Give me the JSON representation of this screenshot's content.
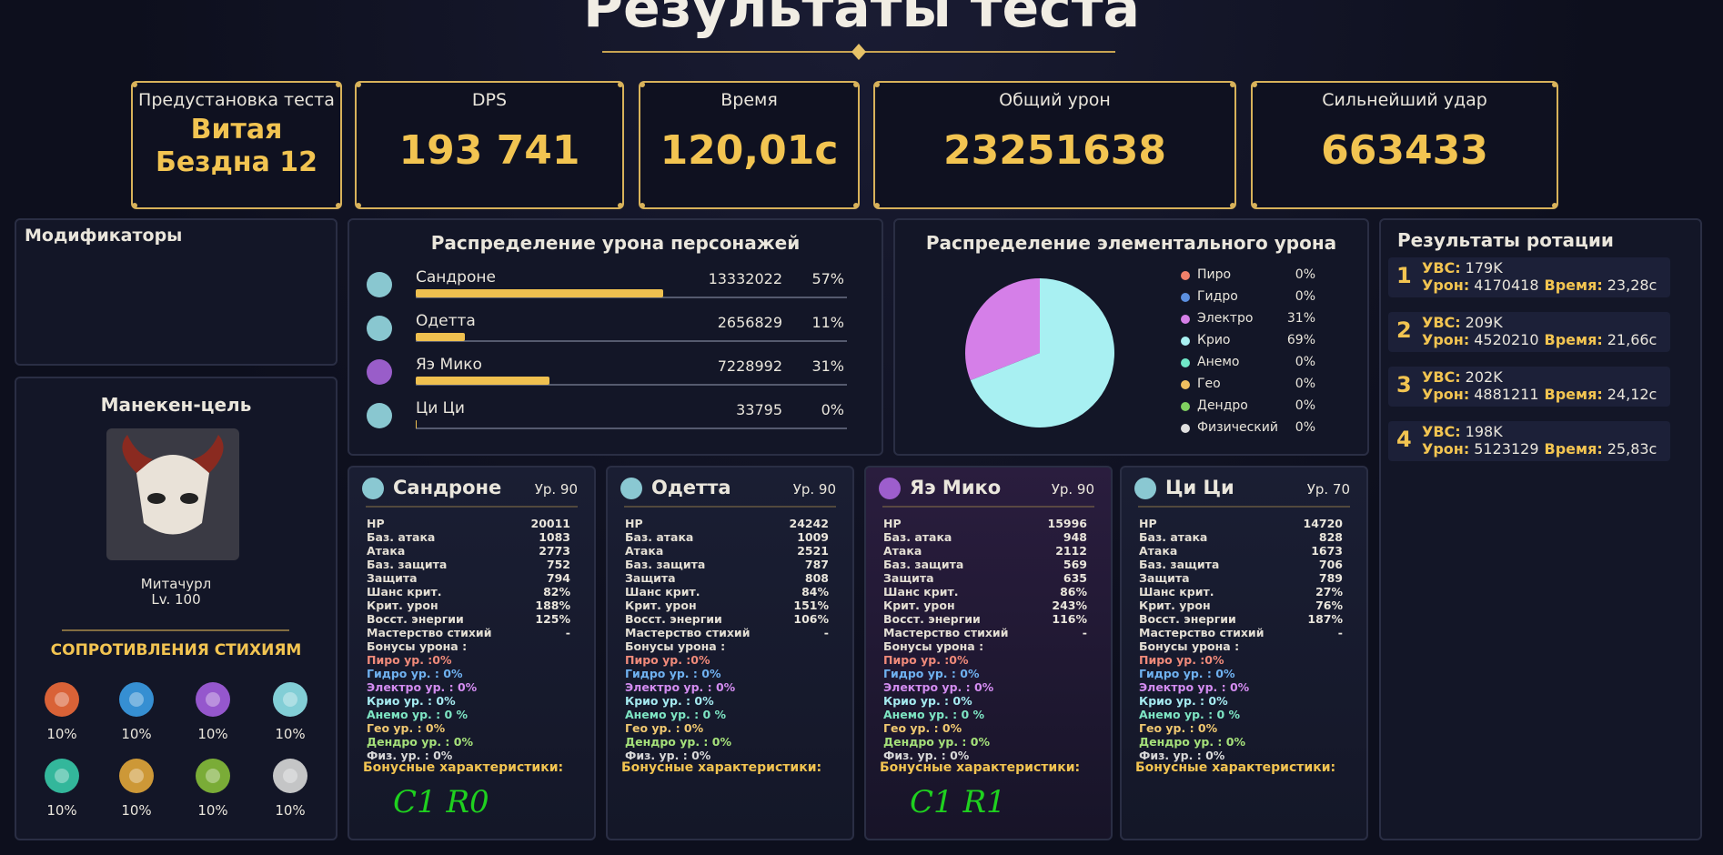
{
  "header": {
    "title": "Результаты теста"
  },
  "summary": [
    {
      "label": "Предустановка теста",
      "value": "Витая Бездна 12"
    },
    {
      "label": "DPS",
      "value": "193 741"
    },
    {
      "label": "Время",
      "value": "120,01с"
    },
    {
      "label": "Общий урон",
      "value": "23251638"
    },
    {
      "label": "Сильнейший удар",
      "value": "663433"
    }
  ],
  "modifiers": {
    "title": "Модификаторы"
  },
  "target": {
    "title": "Манекен-цель",
    "name": "Митачурл",
    "level": "Lv. 100",
    "resistance_title": "СОПРОТИВЛЕНИЯ СТИХИЯМ",
    "resistances": [
      "10%",
      "10%",
      "10%",
      "10%",
      "10%",
      "10%",
      "10%",
      "10%"
    ]
  },
  "damage_chart": {
    "type": "bar",
    "title": "Распределение урона персонажей",
    "categories": [
      "Сандроне",
      "Одетта",
      "Яэ Мико",
      "Ци Ци"
    ],
    "values": [
      13332022,
      2656829,
      7228992,
      33795
    ],
    "percent_labels": [
      "57%",
      "11%",
      "31%",
      "0%"
    ],
    "color": "#efc04f"
  },
  "element_chart": {
    "type": "pie",
    "title": "Распределение элементального урона",
    "categories": [
      "Пиро",
      "Гидро",
      "Электро",
      "Крио",
      "Анемо",
      "Гео",
      "Дендро",
      "Физический"
    ],
    "values": [
      0,
      0,
      31,
      69,
      0,
      0,
      0,
      0
    ],
    "value_labels": [
      "0%",
      "0%",
      "31%",
      "69%",
      "0%",
      "0%",
      "0%",
      "0%"
    ],
    "colors": [
      "#f0806a",
      "#5b8fe0",
      "#d57fe8",
      "#a8f0f2",
      "#70e8c8",
      "#f0c060",
      "#80d060",
      "#e0e0e0"
    ]
  },
  "rotation": {
    "title": "Результаты ротации",
    "labels": {
      "ubc": "УВС:",
      "damage": "Урон:",
      "time": "Время:"
    },
    "items": [
      {
        "index": "1",
        "ubc": "179K",
        "damage": "4170418",
        "time": "23,28с"
      },
      {
        "index": "2",
        "ubc": "209K",
        "damage": "4520210",
        "time": "21,66с"
      },
      {
        "index": "3",
        "ubc": "202K",
        "damage": "4881211",
        "time": "24,12с"
      },
      {
        "index": "4",
        "ubc": "198K",
        "damage": "5123129",
        "time": "25,83с"
      }
    ]
  },
  "cards": {
    "stat_labels": [
      "HP",
      "Баз. атака",
      "Атака",
      "Баз. защита",
      "Защита",
      "Шанс крит.",
      "Крит. урон",
      "Восст. энергии",
      "Мастерство стихий"
    ],
    "bonus_header": "Бонусы урона :",
    "bonus_lines": [
      "Пиро ур. :0%",
      "Гидро ур. : 0%",
      "Электро ур. : 0%",
      "Крио ур. : 0%",
      "Анемо ур. : 0 %",
      "Гео ур. : 0%",
      "Дендро ур. : 0%",
      "Физ. ур. : 0%"
    ],
    "bonus_stats": "Бонусные характеристики:",
    "characters": [
      {
        "name": "Сандроне",
        "level": "Ур. 90",
        "stats": [
          "20011",
          "1083",
          "2773",
          "752",
          "794",
          "82%",
          "188%",
          "125%",
          "-"
        ],
        "annotation": "C1 R0"
      },
      {
        "name": "Одетта",
        "level": "Ур. 90",
        "stats": [
          "24242",
          "1009",
          "2521",
          "787",
          "808",
          "84%",
          "151%",
          "106%",
          "-"
        ]
      },
      {
        "name": "Яэ Мико",
        "level": "Ур. 90",
        "stats": [
          "15996",
          "948",
          "2112",
          "569",
          "635",
          "86%",
          "243%",
          "116%",
          "-"
        ],
        "annotation": "C1 R1"
      },
      {
        "name": "Ци Ци",
        "level": "Ур. 70",
        "stats": [
          "14720",
          "828",
          "1673",
          "706",
          "789",
          "27%",
          "76%",
          "187%",
          "-"
        ]
      }
    ]
  }
}
